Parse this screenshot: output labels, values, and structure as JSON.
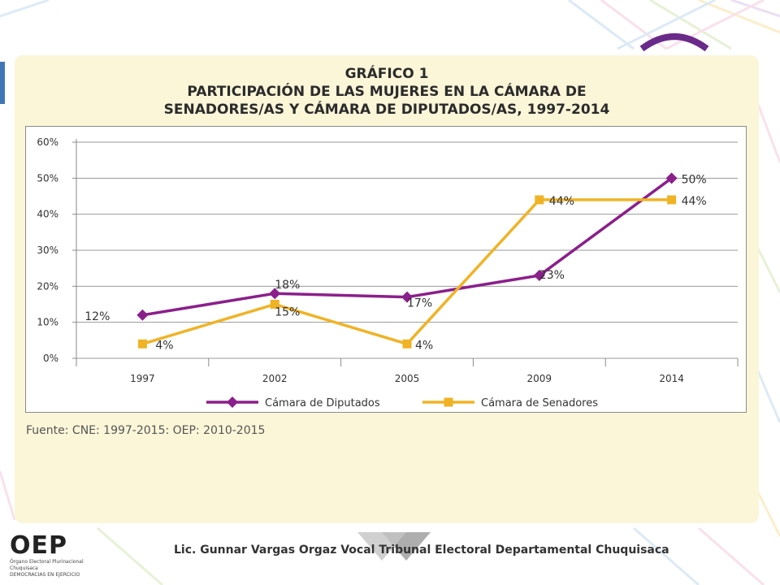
{
  "chart_data": {
    "type": "line",
    "title": "GRÁFICO 1",
    "subtitle": "PARTICIPACIÓN DE LAS MUJERES EN LA CÁMARA DE SENADORES/AS Y CÁMARA DE DIPUTADOS/AS, 1997-2014",
    "xlabel": "",
    "ylabel": "",
    "categories": [
      "1997",
      "2002",
      "2005",
      "2009",
      "2014"
    ],
    "y_ticks": [
      "0%",
      "10%",
      "20%",
      "30%",
      "40%",
      "50%",
      "60%"
    ],
    "ylim": [
      0,
      60
    ],
    "grid": true,
    "legend_position": "bottom",
    "series": [
      {
        "name": "Cámara de Diputados",
        "values": [
          12,
          18,
          17,
          23,
          50
        ],
        "labels": [
          "12%",
          "18%",
          "17%",
          "23%",
          "50%"
        ],
        "color": "#8b1f8b",
        "marker": "diamond"
      },
      {
        "name": "Cámara de Senadores",
        "values": [
          4,
          15,
          4,
          44,
          44
        ],
        "labels": [
          "4%",
          "15%",
          "4%",
          "44%",
          "44%"
        ],
        "color": "#f0b326",
        "marker": "square"
      }
    ]
  },
  "header": {
    "title_line1": "GRÁFICO 1",
    "title_line2": "PARTICIPACIÓN DE LAS MUJERES EN LA CÁMARA DE",
    "title_line3": "SENADORES/AS Y CÁMARA DE DIPUTADOS/AS, 1997-2014"
  },
  "source_note": "Fuente: CNE: 1997-2015: OEP: 2010-2015",
  "footer": {
    "logo_text": "OEP",
    "logo_line1": "Órgano Electoral Plurinacional",
    "logo_line2": "Chuquisaca",
    "logo_line3": "DEMOCRACIAS EN EJERCICIO",
    "caption": "Lic. Gunnar Vargas Orgaz Vocal Tribunal Electoral Departamental Chuquisaca"
  }
}
